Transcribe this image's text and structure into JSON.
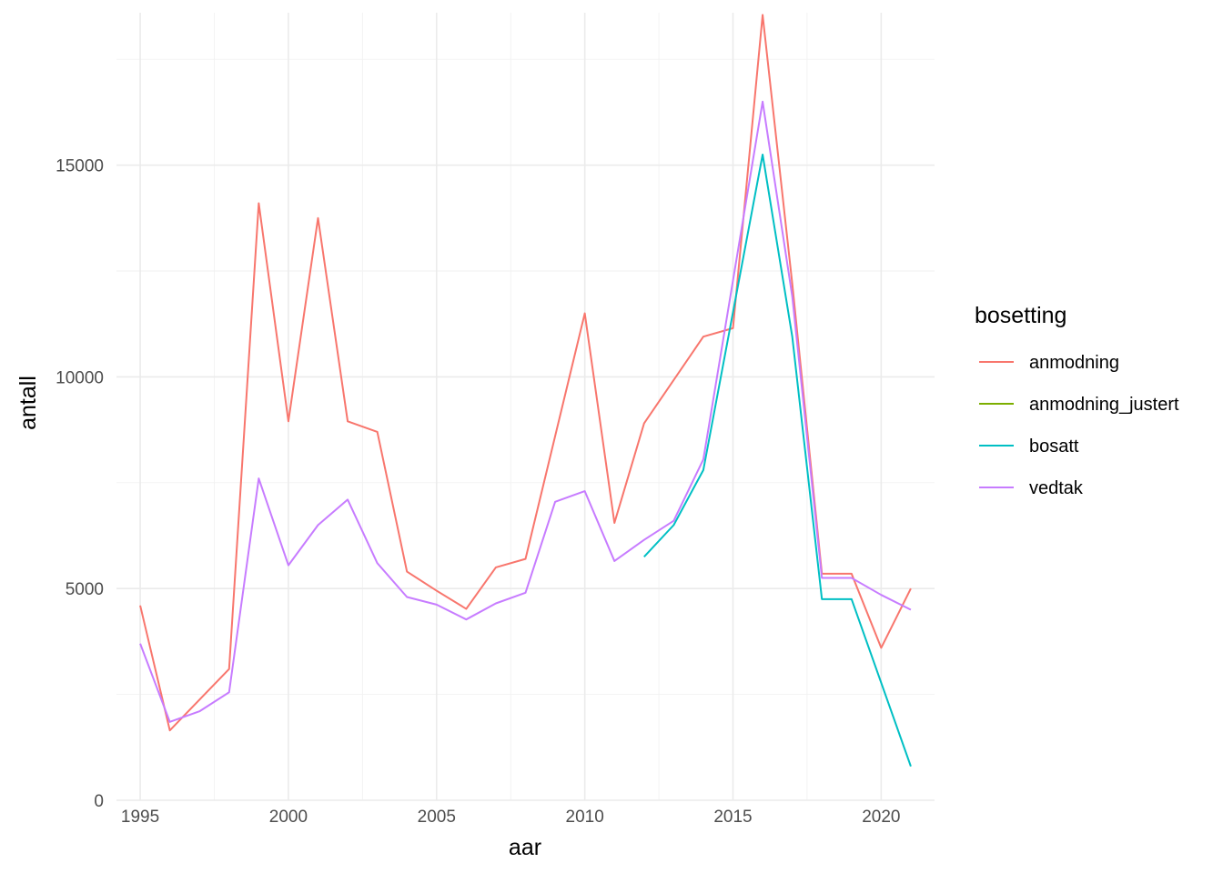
{
  "chart_data": {
    "type": "line",
    "title": "",
    "xlabel": "aar",
    "ylabel": "antall",
    "xlim": [
      1994.2,
      2021.8
    ],
    "ylim": [
      0,
      18600
    ],
    "x_ticks": [
      1995,
      2000,
      2005,
      2010,
      2015,
      2020
    ],
    "y_ticks": [
      0,
      5000,
      10000,
      15000
    ],
    "grid": true,
    "legend": {
      "title": "bosetting",
      "position": "right"
    },
    "series": [
      {
        "name": "anmodning",
        "color": "#F8766D",
        "points": [
          [
            1995,
            4600
          ],
          [
            1996,
            1650
          ],
          [
            1998,
            3100
          ],
          [
            1999,
            14100
          ],
          [
            2000,
            8950
          ],
          [
            2001,
            13750
          ],
          [
            2002,
            8950
          ],
          [
            2003,
            8700
          ],
          [
            2004,
            5400
          ],
          [
            2005,
            4950
          ],
          [
            2006,
            4520
          ],
          [
            2007,
            5500
          ],
          [
            2008,
            5700
          ],
          [
            2010,
            11500
          ],
          [
            2011,
            6550
          ],
          [
            2012,
            8900
          ],
          [
            2014,
            10950
          ],
          [
            2015,
            11150
          ],
          [
            2016,
            18550
          ],
          [
            2017,
            12200
          ],
          [
            2018,
            5350
          ],
          [
            2019,
            5350
          ],
          [
            2020,
            3600
          ],
          [
            2021,
            5000
          ]
        ]
      },
      {
        "name": "anmodning_justert",
        "color": "#7CAE00",
        "points": []
      },
      {
        "name": "bosatt",
        "color": "#00BFC4",
        "points": [
          [
            2012,
            5750
          ],
          [
            2013,
            6500
          ],
          [
            2014,
            7800
          ],
          [
            2016,
            15250
          ],
          [
            2017,
            10950
          ],
          [
            2018,
            4750
          ],
          [
            2019,
            4750
          ],
          [
            2021,
            800
          ]
        ]
      },
      {
        "name": "vedtak",
        "color": "#C77CFF",
        "points": [
          [
            1995,
            3700
          ],
          [
            1996,
            1850
          ],
          [
            1997,
            2100
          ],
          [
            1998,
            2550
          ],
          [
            1999,
            7600
          ],
          [
            2000,
            5550
          ],
          [
            2001,
            6500
          ],
          [
            2002,
            7100
          ],
          [
            2003,
            5600
          ],
          [
            2004,
            4800
          ],
          [
            2005,
            4620
          ],
          [
            2006,
            4270
          ],
          [
            2007,
            4650
          ],
          [
            2008,
            4900
          ],
          [
            2009,
            7050
          ],
          [
            2010,
            7300
          ],
          [
            2011,
            5650
          ],
          [
            2012,
            6150
          ],
          [
            2013,
            6600
          ],
          [
            2014,
            8050
          ],
          [
            2016,
            16500
          ],
          [
            2017,
            11900
          ],
          [
            2018,
            5250
          ],
          [
            2019,
            5250
          ],
          [
            2020,
            4850
          ],
          [
            2021,
            4500
          ]
        ]
      }
    ]
  }
}
